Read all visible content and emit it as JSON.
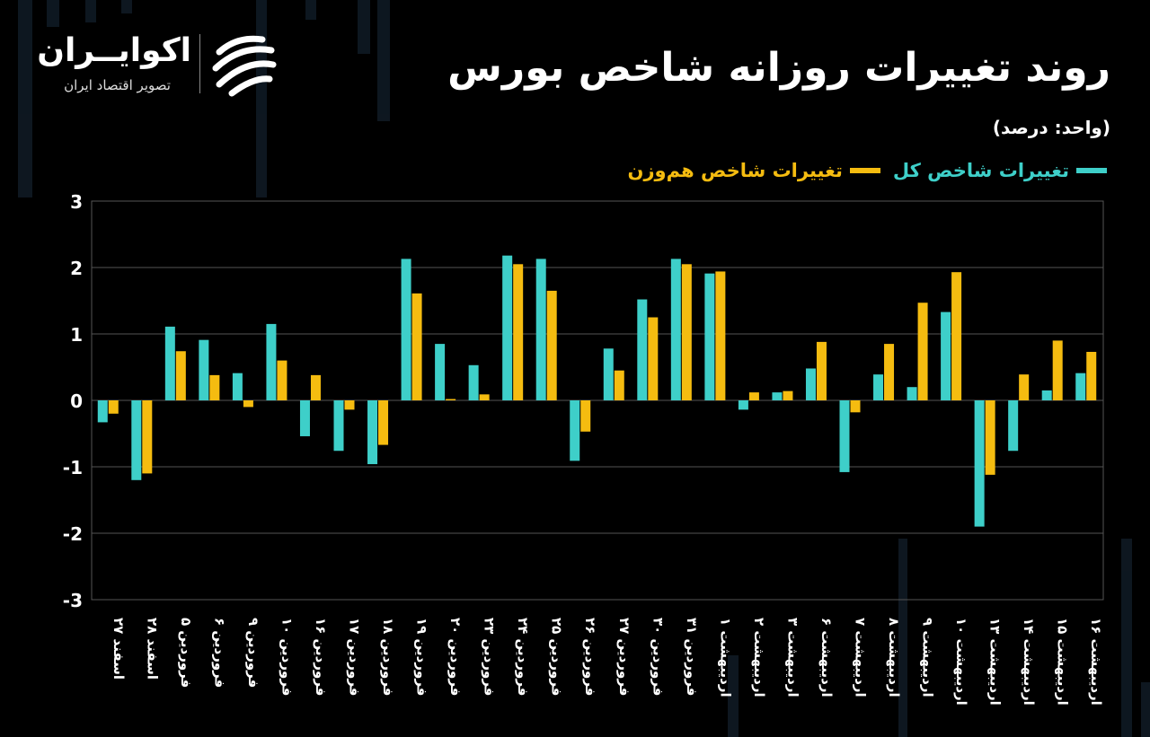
{
  "header": {
    "title": "روند تغییرات روزانه شاخص بورس",
    "unit": "(واحد: درصد)"
  },
  "brand": {
    "name": "اکوایــران",
    "tagline": "تصویر اقتصاد ایران",
    "logo_icon": "swirl-logo-icon"
  },
  "legend": [
    {
      "label": "تغییرات شاخص کل",
      "color": "#3ecfc9"
    },
    {
      "label": "تغییرات شاخص هم‌وزن",
      "color": "#f5bc10"
    }
  ],
  "chart_data": {
    "type": "bar",
    "title": "روند تغییرات روزانه شاخص بورس",
    "ylabel": "(واحد: درصد)",
    "ylim": [
      -3,
      3
    ],
    "yticks": [
      "3",
      "2",
      "1",
      "0",
      "-1",
      "-2",
      "-3"
    ],
    "yticks_values": [
      3,
      2,
      1,
      0,
      -1,
      -2,
      -3
    ],
    "grid": true,
    "legend_position": "top-right",
    "categories": [
      "۲۷ اسفند",
      "۲۸ اسفند",
      "۵ فروردین",
      "۶ فروردین",
      "۹ فروردین",
      "۱۰ فروردین",
      "۱۶ فروردین",
      "۱۷ فروردین",
      "۱۸ فروردین",
      "۱۹ فروردین",
      "۲۰ فروردین",
      "۲۳ فروردین",
      "۲۴ فروردین",
      "۲۵ فروردین",
      "۲۶ فروردین",
      "۲۷ فروردین",
      "۳۰ فروردین",
      "۳۱ فروردین",
      "۱ اردیبهشت",
      "۲ اردیبهشت",
      "۳ اردیبهشت",
      "۶ اردیبهشت",
      "۷ اردیبهشت",
      "۸ اردیبهشت",
      "۹ اردیبهشت",
      "۱۰ اردیبهشت",
      "۱۳ اردیبهشت",
      "۱۴ اردیبهشت",
      "۱۵ اردیبهشت",
      "۱۶ اردیبهشت"
    ],
    "series": [
      {
        "name": "تغییرات شاخص کل",
        "color": "#3ecfc9",
        "values": [
          -0.33,
          -1.2,
          1.11,
          0.91,
          0.41,
          1.15,
          -0.54,
          -0.76,
          -0.96,
          2.13,
          0.85,
          0.53,
          2.18,
          2.13,
          -0.91,
          0.78,
          1.52,
          2.13,
          1.91,
          -0.14,
          0.12,
          0.48,
          -1.08,
          0.39,
          0.2,
          1.33,
          -1.9,
          -0.76,
          0.15,
          0.41
        ]
      },
      {
        "name": "تغییرات شاخص هم‌وزن",
        "color": "#f5bc10",
        "values": [
          -0.2,
          -1.1,
          0.74,
          0.38,
          -0.1,
          0.6,
          0.38,
          -0.14,
          -0.67,
          1.61,
          0.02,
          0.09,
          2.05,
          1.65,
          -0.47,
          0.45,
          1.25,
          2.05,
          1.94,
          0.12,
          0.14,
          0.88,
          -0.18,
          0.85,
          1.47,
          1.93,
          -1.12,
          0.39,
          0.9,
          0.73
        ]
      }
    ]
  }
}
